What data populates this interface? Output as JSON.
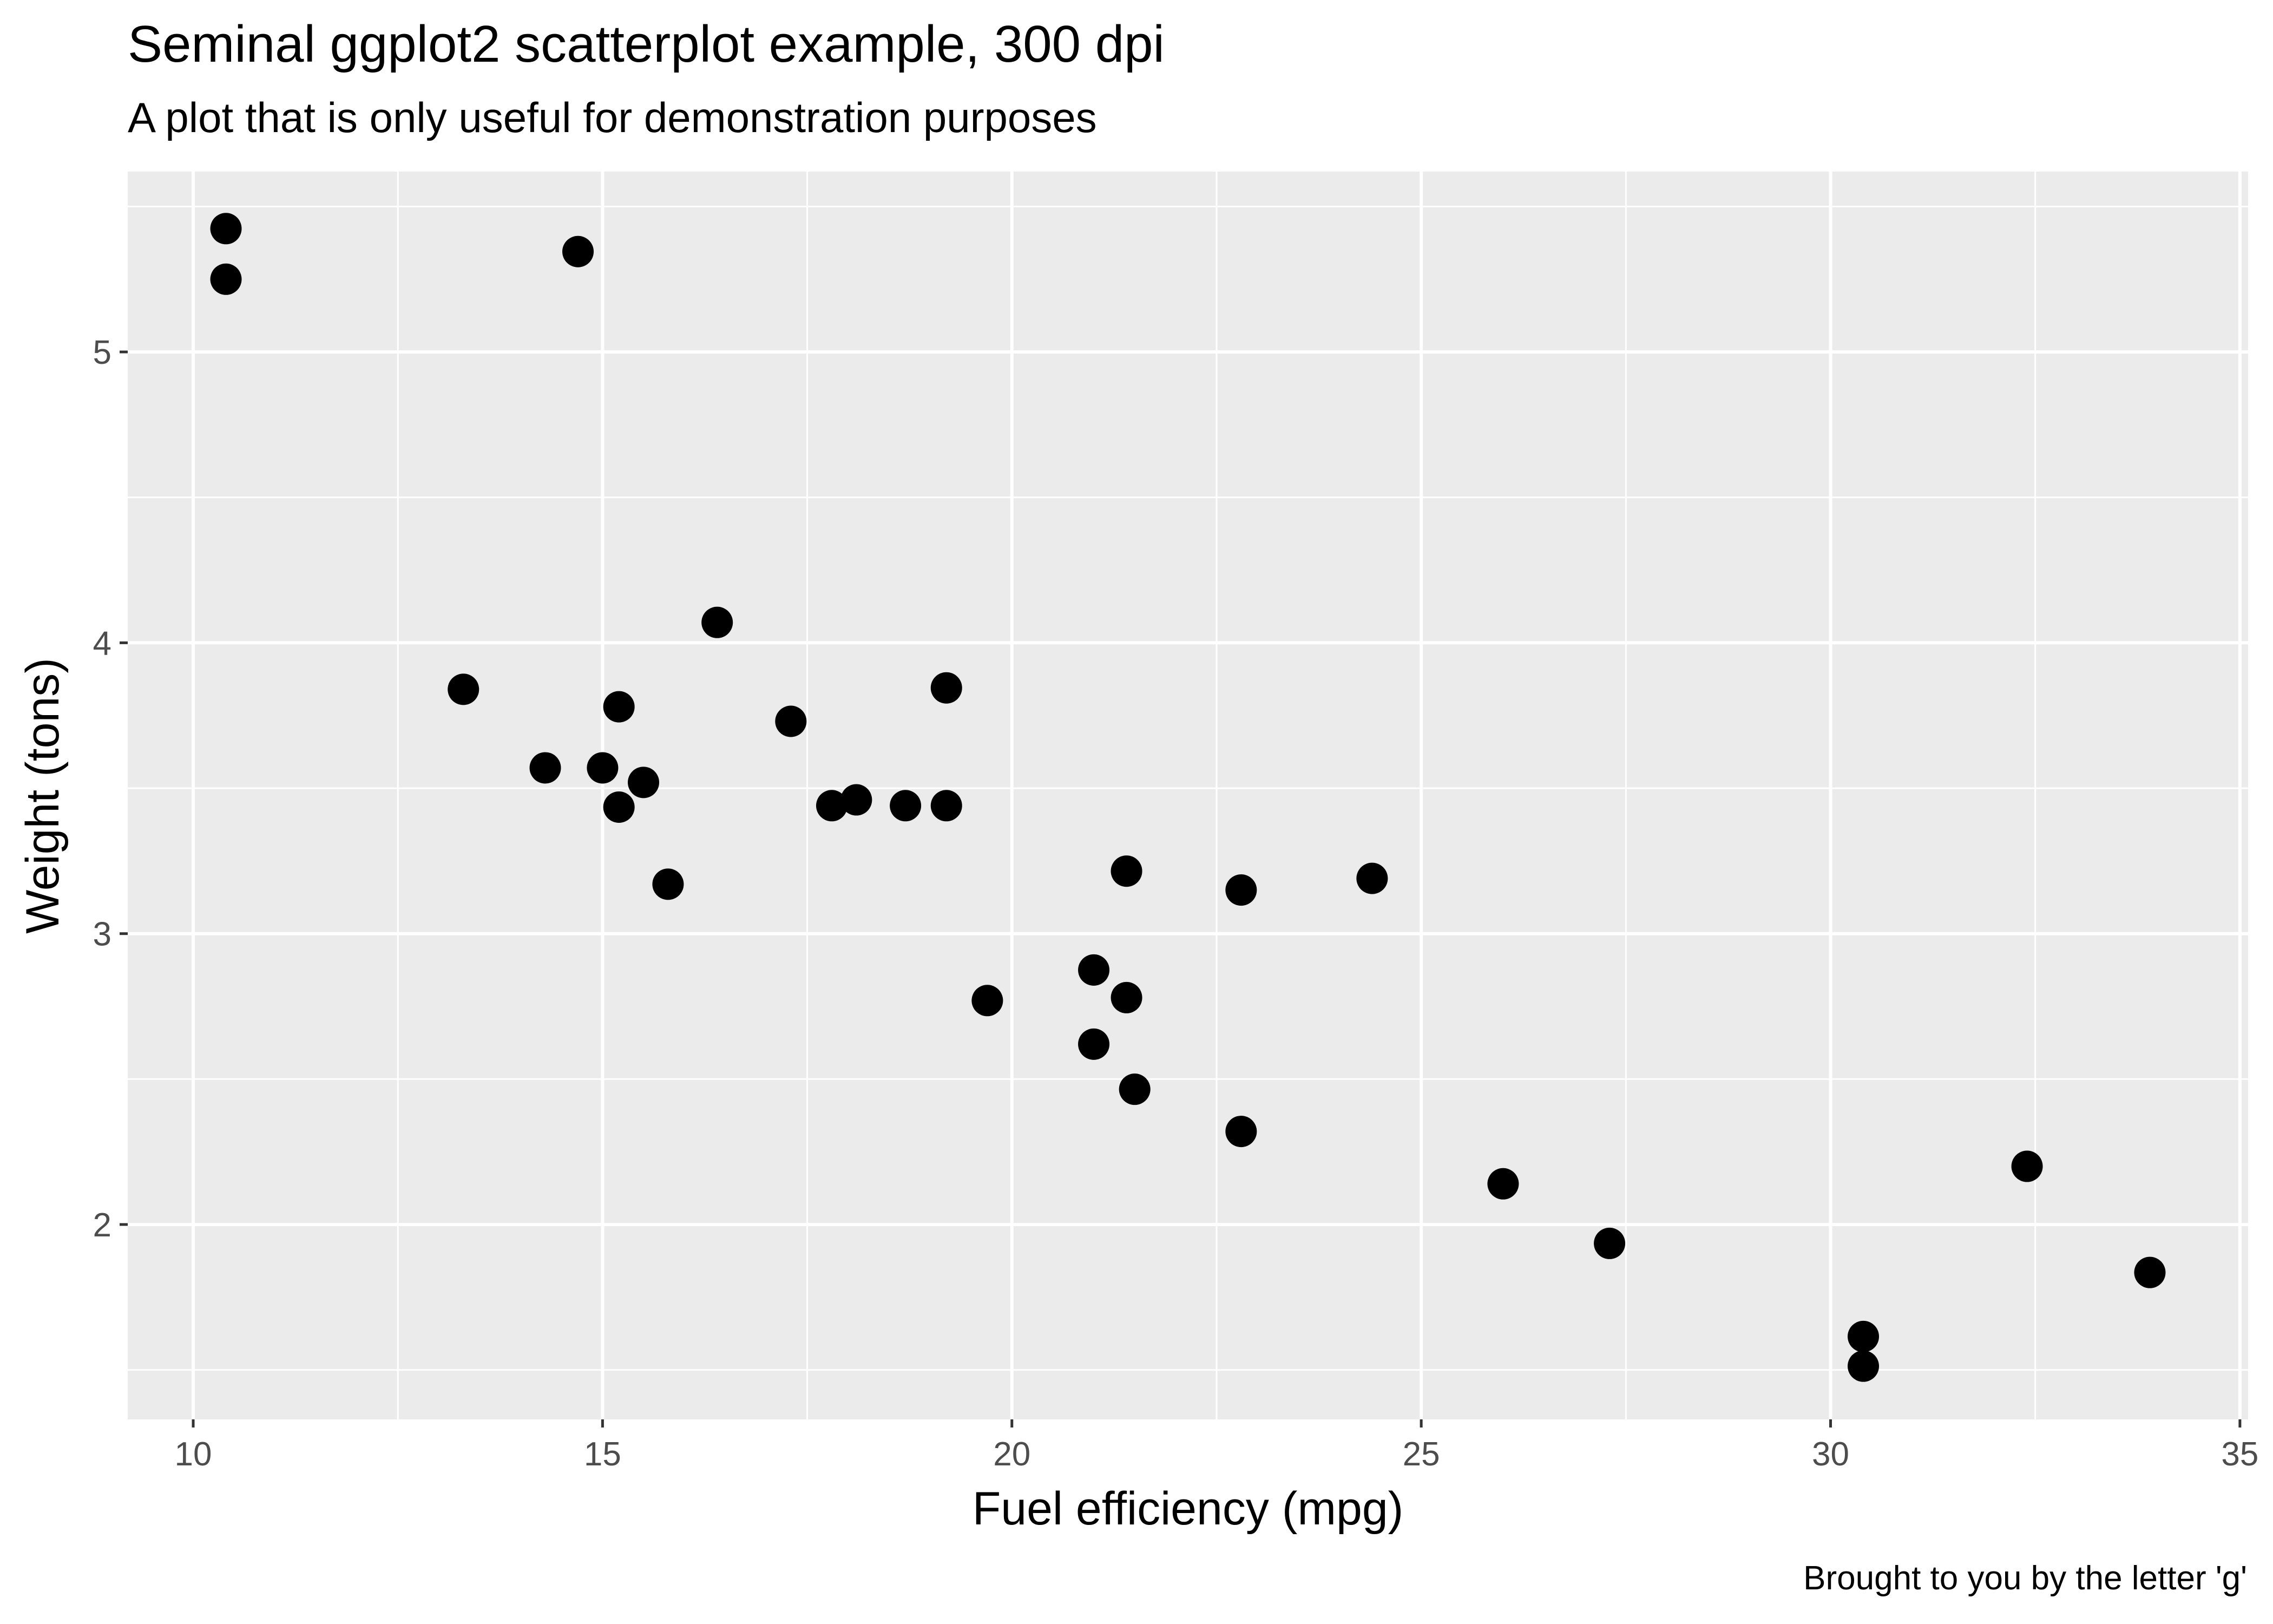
{
  "chart_data": {
    "type": "scatter",
    "title": "Seminal ggplot2 scatterplot example, 300 dpi",
    "subtitle": "A plot that is only useful for demonstration purposes",
    "xlabel": "Fuel efficiency (mpg)",
    "ylabel": "Weight (tons)",
    "caption": "Brought to you by the letter 'g'",
    "xlim": [
      9.2,
      35.1
    ],
    "ylim": [
      1.33,
      5.62
    ],
    "x_ticks": [
      10,
      15,
      20,
      25,
      30,
      35
    ],
    "y_ticks": [
      2,
      3,
      4,
      5
    ],
    "x_tick_labels": [
      "10",
      "15",
      "20",
      "25",
      "30",
      "35"
    ],
    "y_tick_labels": [
      "2",
      "3",
      "4",
      "5"
    ],
    "grid": true,
    "legend": "none",
    "colors": {
      "panel_background": "#EBEBEB",
      "grid_lines": "#FFFFFF",
      "points": "#000000",
      "tick_labels": "#4D4D4D",
      "tick_marks": "#333333"
    },
    "series": [
      {
        "x": [
          21.0,
          21.0,
          22.8,
          21.4,
          18.7,
          18.1,
          14.3,
          24.4,
          22.8,
          19.2,
          17.8,
          16.4,
          17.3,
          15.2,
          10.4,
          10.4,
          14.7,
          32.4,
          30.4,
          33.9,
          21.5,
          15.5,
          15.2,
          13.3,
          19.2,
          27.3,
          26.0,
          30.4,
          15.8,
          19.7,
          15.0,
          21.4
        ],
        "y": [
          2.62,
          2.875,
          2.32,
          3.215,
          3.44,
          3.46,
          3.57,
          3.19,
          3.15,
          3.44,
          3.44,
          4.07,
          3.73,
          3.78,
          5.25,
          5.424,
          5.345,
          2.2,
          1.615,
          1.835,
          2.465,
          3.52,
          3.435,
          3.84,
          3.845,
          1.935,
          2.14,
          1.513,
          3.17,
          2.77,
          3.57,
          2.78
        ]
      }
    ]
  }
}
